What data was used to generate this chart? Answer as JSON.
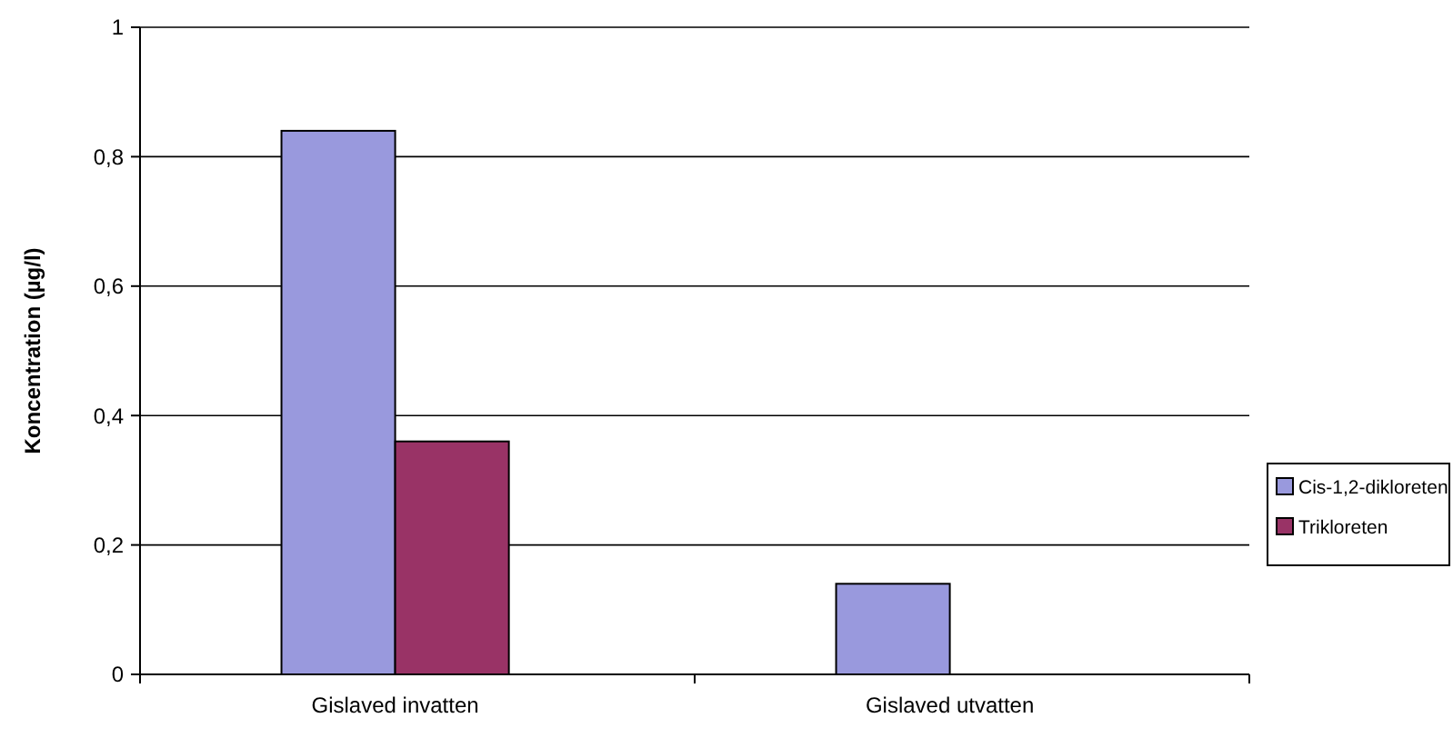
{
  "chart_data": {
    "type": "bar",
    "ylabel": "Koncentration (µg/l)",
    "categories": [
      "Gislaved invatten",
      "Gislaved utvatten"
    ],
    "series": [
      {
        "name": "Cis-1,2-dikloreten",
        "color": "#9999dd",
        "values": [
          0.84,
          0.14
        ]
      },
      {
        "name": "Trikloreten",
        "color": "#993366",
        "values": [
          0.36,
          null
        ]
      }
    ],
    "ylim": [
      0,
      1
    ],
    "yticks": [
      0,
      {
        "value": 0.2,
        "label": "0,2"
      },
      {
        "value": 0.4,
        "label": "0,4"
      },
      {
        "value": 0.6,
        "label": "0,6"
      },
      {
        "value": 0.8,
        "label": "0,8"
      },
      1
    ],
    "grid": "y",
    "legend": "right"
  }
}
